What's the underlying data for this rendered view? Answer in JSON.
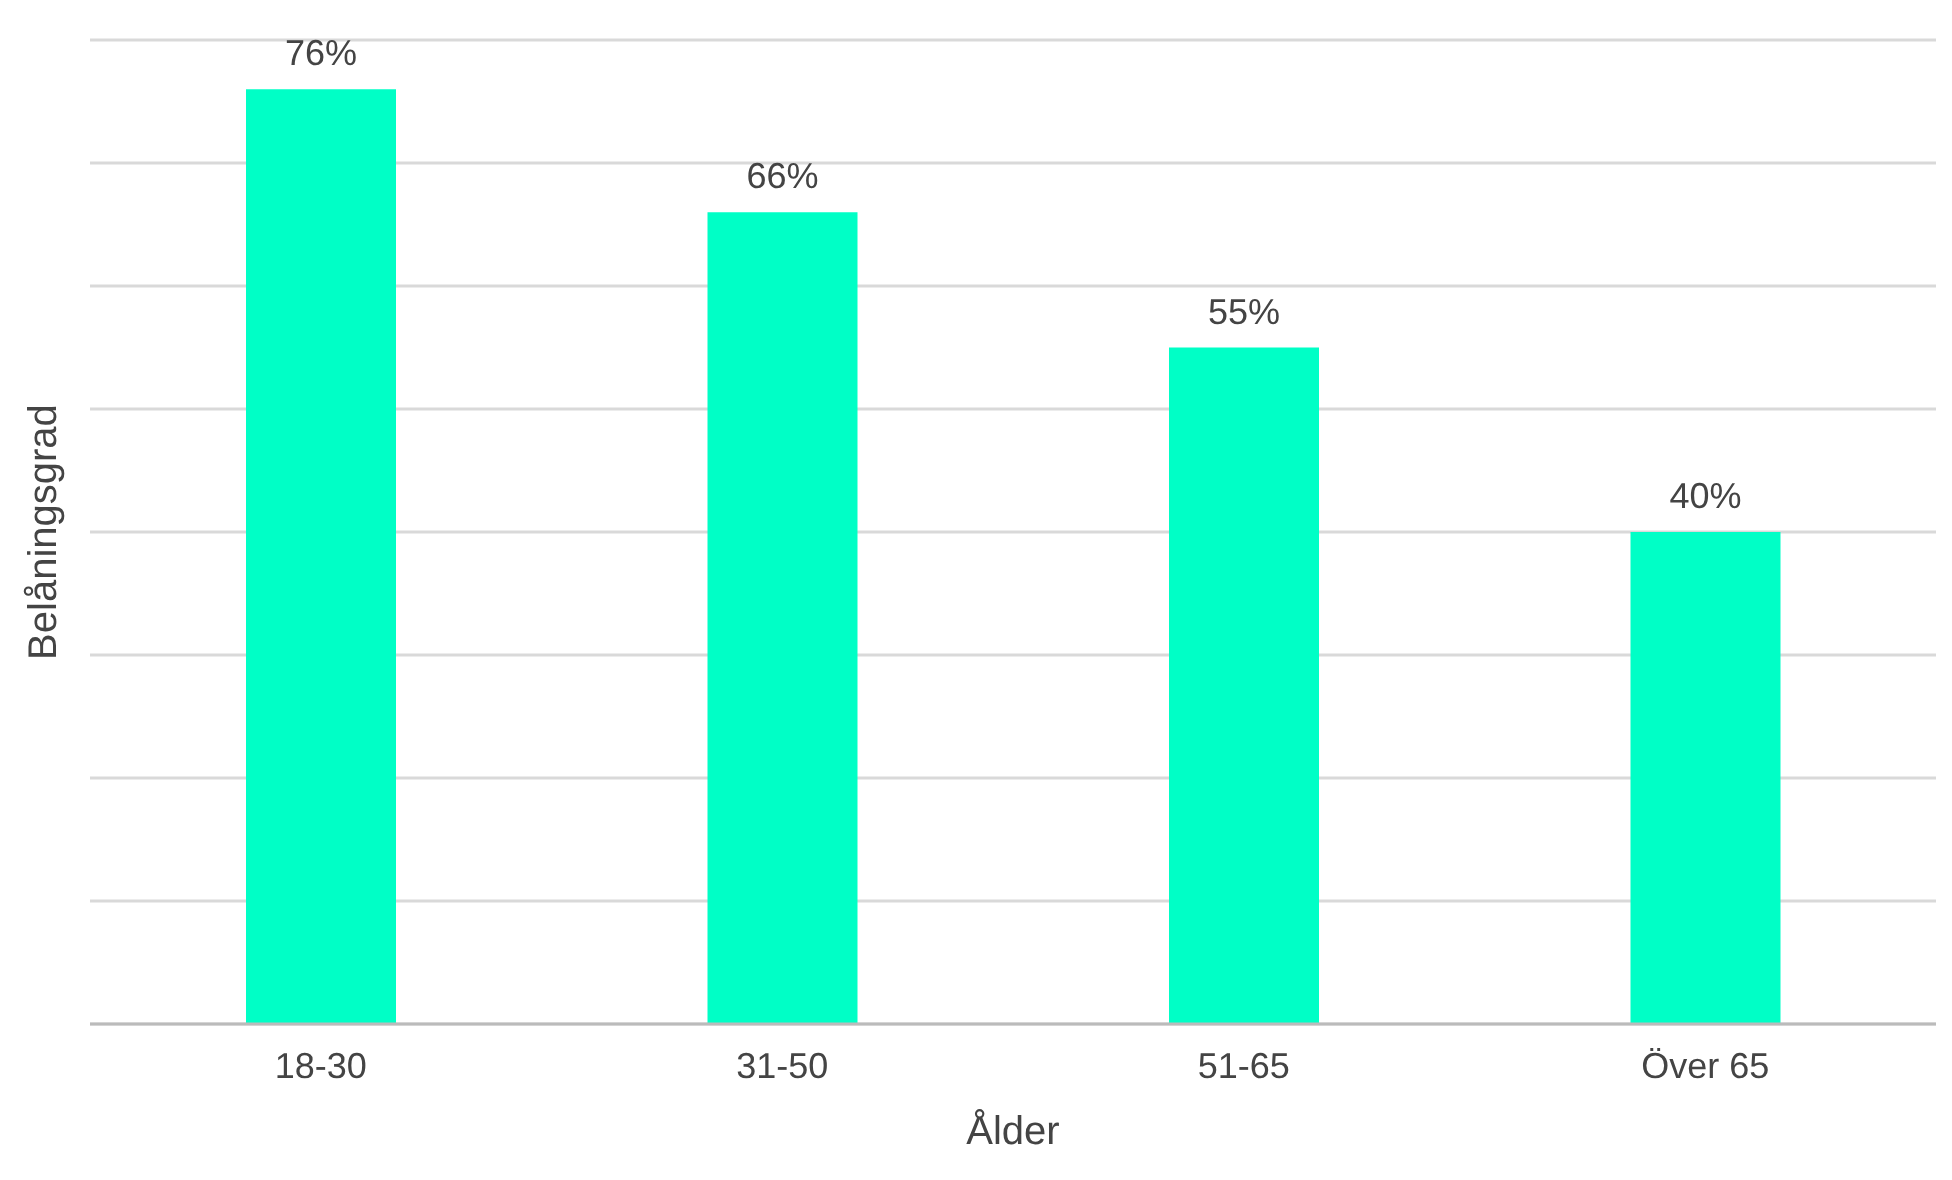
{
  "chart_data": {
    "type": "bar",
    "xlabel": "Ålder",
    "ylabel": "Belåningsgrad",
    "categories": [
      "18-30",
      "31-50",
      "51-65",
      "Över 65"
    ],
    "values": [
      76,
      66,
      55,
      40
    ],
    "value_labels": [
      "76%",
      "66%",
      "55%",
      "40%"
    ],
    "color": "#00ffc6",
    "grid": "y",
    "tick_labels": "x"
  }
}
